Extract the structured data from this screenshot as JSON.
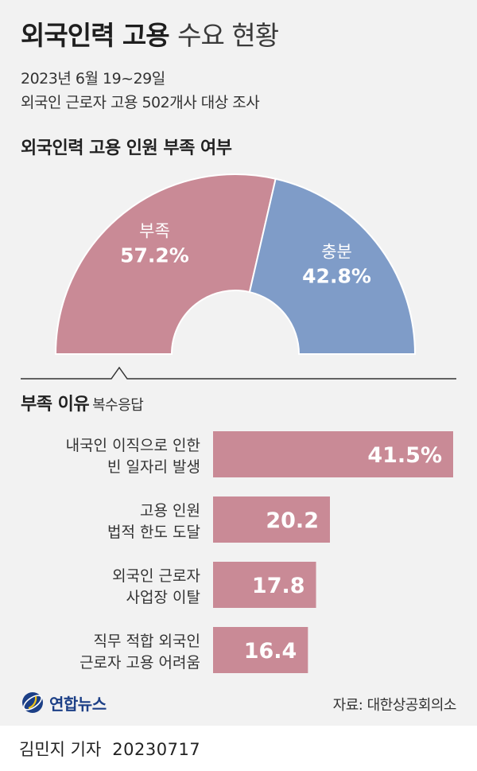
{
  "header": {
    "title_bold": "외국인력 고용",
    "title_light": "수요 현황",
    "date_range": "2023년 6월 19~29일",
    "survey": "외국인 근로자 고용 502개사 대상 조사"
  },
  "donut_section": {
    "title": "외국인력 고용 인원 부족 여부"
  },
  "reasons_section": {
    "title": "부족 이유",
    "note": "복수응답"
  },
  "chart_data": [
    {
      "type": "pie",
      "title": "외국인력 고용 인원 부족 여부",
      "categories": [
        "부족",
        "충분"
      ],
      "values": [
        57.2,
        42.8
      ],
      "value_labels": [
        "57.2%",
        "42.8%"
      ],
      "unit": "%",
      "colors": [
        "#c98a96",
        "#7f9cc8"
      ],
      "shape": "half-donut"
    },
    {
      "type": "bar",
      "orientation": "horizontal",
      "title": "부족 이유",
      "subtitle": "복수응답",
      "categories": [
        [
          "내국인 이직으로 인한",
          "빈 일자리 발생"
        ],
        [
          "고용 인원",
          "법적 한도 도달"
        ],
        [
          "외국인 근로자",
          "사업장 이탈"
        ],
        [
          "직무 적합 외국인",
          "근로자 고용 어려움"
        ]
      ],
      "values": [
        41.5,
        20.2,
        17.8,
        16.4
      ],
      "value_labels": [
        "41.5%",
        "20.2",
        "17.8",
        "16.4"
      ],
      "unit": "%",
      "color": "#c98a96"
    }
  ],
  "brand": {
    "name": "연합뉴스"
  },
  "source": "자료: 대한상공회의소",
  "footer": {
    "author": "김민지 기자",
    "date": "20230717"
  }
}
